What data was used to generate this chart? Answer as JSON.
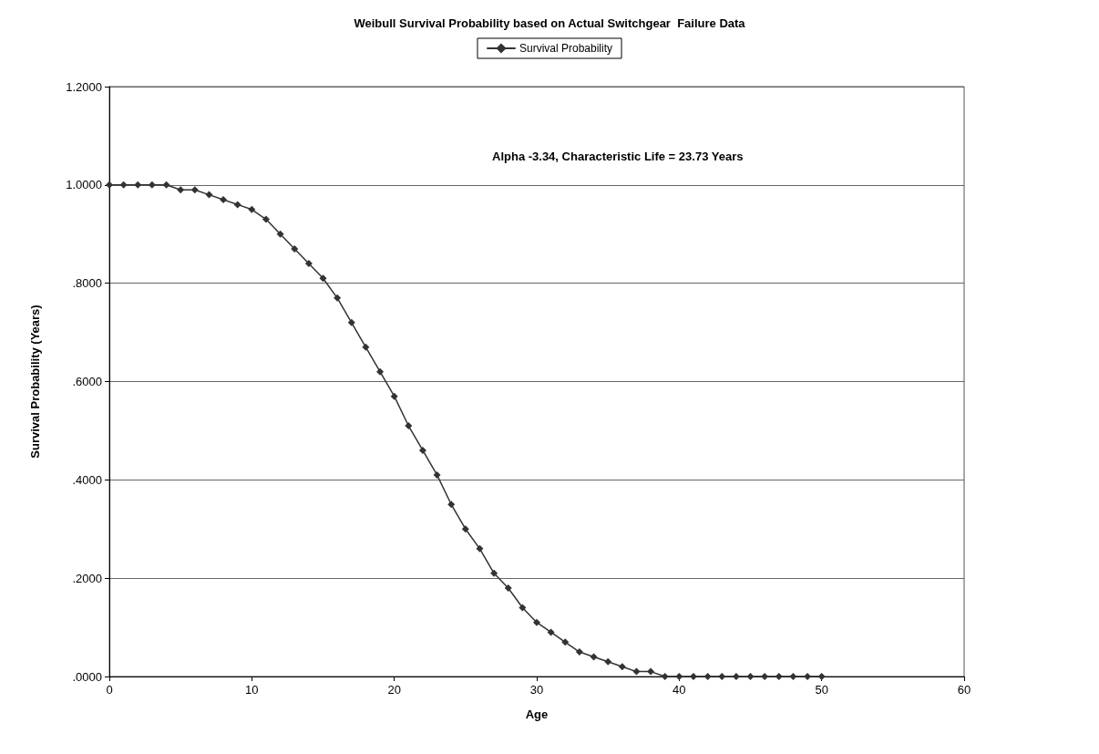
{
  "chart_data": {
    "type": "line",
    "title": "Weibull Survival Probability based on Actual Switchgear  Failure Data",
    "xlabel": "Age",
    "ylabel": "Survival Probability (Years)",
    "x": [
      0,
      1,
      2,
      3,
      4,
      5,
      6,
      7,
      8,
      9,
      10,
      11,
      12,
      13,
      14,
      15,
      16,
      17,
      18,
      19,
      20,
      21,
      22,
      23,
      24,
      25,
      26,
      27,
      28,
      29,
      30,
      31,
      32,
      33,
      34,
      35,
      36,
      37,
      38,
      39,
      40,
      41,
      42,
      43,
      44,
      45,
      46,
      47,
      48,
      49,
      50
    ],
    "series": [
      {
        "name": "Survival Probability",
        "color": "#333333",
        "values": [
          1.0,
          1.0,
          1.0,
          1.0,
          1.0,
          0.99,
          0.99,
          0.98,
          0.97,
          0.96,
          0.95,
          0.93,
          0.9,
          0.87,
          0.84,
          0.81,
          0.77,
          0.72,
          0.67,
          0.62,
          0.57,
          0.51,
          0.46,
          0.41,
          0.35,
          0.3,
          0.26,
          0.21,
          0.18,
          0.14,
          0.11,
          0.09,
          0.07,
          0.05,
          0.04,
          0.03,
          0.02,
          0.01,
          0.01,
          0.0,
          0.0,
          0.0,
          0.0,
          0.0,
          0.0,
          0.0,
          0.0,
          0.0,
          0.0,
          0.0,
          0.0
        ]
      }
    ],
    "xlim": [
      0,
      60
    ],
    "xticks": [
      0,
      10,
      20,
      30,
      40,
      50,
      60
    ],
    "ylim": [
      0,
      1.2
    ],
    "yticks": [
      {
        "value": 0,
        "label": ".0000"
      },
      {
        "value": 0.2,
        "label": ".2000"
      },
      {
        "value": 0.4,
        "label": ".4000"
      },
      {
        "value": 0.6,
        "label": ".6000"
      },
      {
        "value": 0.8,
        "label": ".8000"
      },
      {
        "value": 1.0,
        "label": "1.0000"
      },
      {
        "value": 1.2,
        "label": "1.2000"
      }
    ],
    "annotations": [
      "Alpha -3.34, Characteristic Life = 23.73 Years"
    ],
    "grid": "y",
    "legend": "top",
    "marker": "diamond",
    "line_style": "solid"
  }
}
